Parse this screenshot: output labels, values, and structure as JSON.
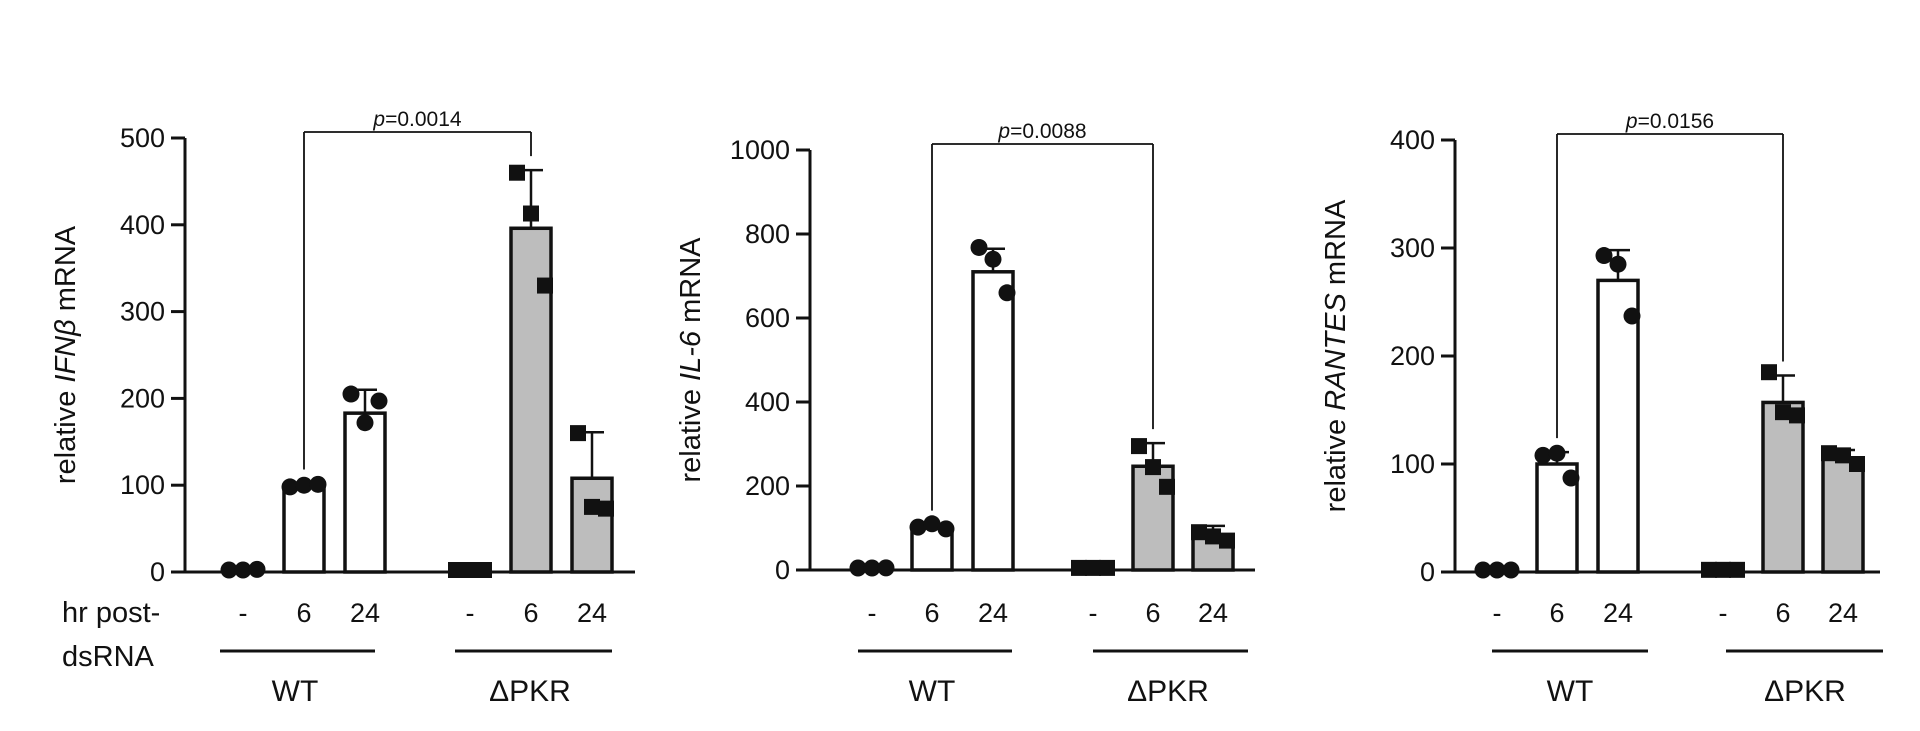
{
  "hr_label": [
    "hr post-",
    "dsRNA"
  ],
  "chart_data": [
    {
      "type": "bar",
      "ylabel_parts": [
        {
          "text": "relative ",
          "italic": false
        },
        {
          "text": "IFNβ",
          "italic": true
        },
        {
          "text": " mRNA",
          "italic": false
        }
      ],
      "ylim": [
        0,
        500
      ],
      "yticks": [
        0,
        100,
        200,
        300,
        400,
        500
      ],
      "categories": [
        "-",
        "6",
        "24",
        "-",
        "6",
        "24"
      ],
      "groups": [
        {
          "label": "WT"
        },
        {
          "label": "ΔPKR"
        }
      ],
      "values": [
        0,
        100,
        183,
        2,
        396,
        108
      ],
      "errors": [
        0,
        2,
        27,
        0,
        67,
        53
      ],
      "fill_colors": [
        "#ffffff",
        "#ffffff",
        "#ffffff",
        "#bdbdbd",
        "#bdbdbd",
        "#bdbdbd"
      ],
      "points": [
        [
          1,
          2,
          3
        ],
        [
          98,
          100,
          101
        ],
        [
          205,
          172,
          197
        ],
        [
          2,
          2,
          2
        ],
        [
          460,
          413,
          330
        ],
        [
          160,
          75,
          73
        ]
      ],
      "markers": [
        "circle",
        "circle",
        "circle",
        "square",
        "square",
        "square"
      ],
      "significance": {
        "from": 1,
        "to": 4,
        "label": "p=0.0014",
        "prefix": "p",
        "value": "=0.0014"
      }
    },
    {
      "type": "bar",
      "ylabel_parts": [
        {
          "text": "relative ",
          "italic": false
        },
        {
          "text": "IL-6",
          "italic": true
        },
        {
          "text": " mRNA",
          "italic": false
        }
      ],
      "ylim": [
        0,
        1000
      ],
      "yticks": [
        0,
        200,
        400,
        600,
        800,
        1000
      ],
      "categories": [
        "-",
        "6",
        "24",
        "-",
        "6",
        "24"
      ],
      "groups": [
        {
          "label": "WT"
        },
        {
          "label": "ΔPKR"
        }
      ],
      "values": [
        0,
        100,
        710,
        5,
        247,
        80
      ],
      "errors": [
        0,
        8,
        55,
        0,
        55,
        25
      ],
      "fill_colors": [
        "#ffffff",
        "#ffffff",
        "#ffffff",
        "#bdbdbd",
        "#bdbdbd",
        "#bdbdbd"
      ],
      "points": [
        [
          3,
          4,
          5
        ],
        [
          102,
          110,
          98
        ],
        [
          768,
          740,
          660
        ],
        [
          5,
          5,
          5
        ],
        [
          295,
          245,
          198
        ],
        [
          90,
          80,
          70
        ]
      ],
      "markers": [
        "circle",
        "circle",
        "circle",
        "square",
        "square",
        "square"
      ],
      "significance": {
        "from": 1,
        "to": 4,
        "label": "p=0.0088",
        "prefix": "p",
        "value": "=0.0088"
      }
    },
    {
      "type": "bar",
      "ylabel_parts": [
        {
          "text": "relative ",
          "italic": false
        },
        {
          "text": "RANTES",
          "italic": true
        },
        {
          "text": " mRNA",
          "italic": false
        }
      ],
      "ylim": [
        0,
        400
      ],
      "yticks": [
        0,
        100,
        200,
        300,
        400
      ],
      "categories": [
        "-",
        "6",
        "24",
        "-",
        "6",
        "24"
      ],
      "groups": [
        {
          "label": "WT"
        },
        {
          "label": "ΔPKR"
        }
      ],
      "values": [
        0,
        100,
        270,
        2,
        157,
        105
      ],
      "errors": [
        0,
        11,
        28,
        0,
        25,
        8
      ],
      "fill_colors": [
        "#ffffff",
        "#ffffff",
        "#ffffff",
        "#bdbdbd",
        "#bdbdbd",
        "#bdbdbd"
      ],
      "points": [
        [
          1,
          1,
          1
        ],
        [
          108,
          110,
          87
        ],
        [
          293,
          285,
          237
        ],
        [
          2,
          2,
          2
        ],
        [
          185,
          148,
          145
        ],
        [
          110,
          108,
          100
        ]
      ],
      "markers": [
        "circle",
        "circle",
        "circle",
        "square",
        "square",
        "square"
      ],
      "significance": {
        "from": 1,
        "to": 4,
        "label": "p=0.0156",
        "prefix": "p",
        "value": "=0.0156"
      }
    }
  ]
}
